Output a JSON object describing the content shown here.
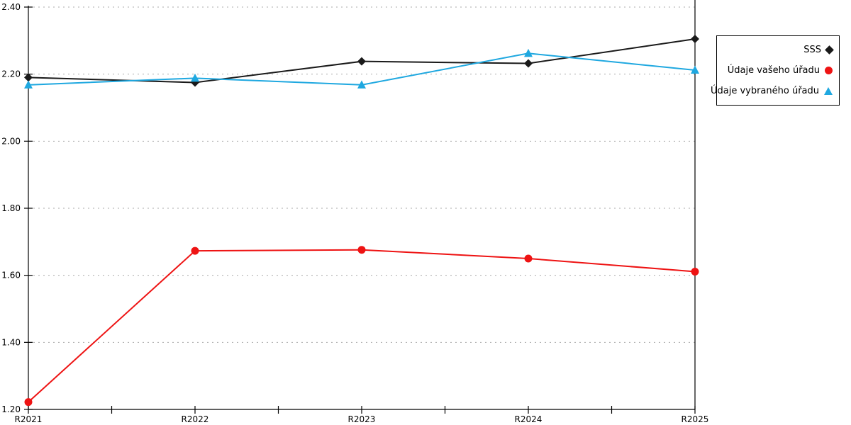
{
  "chart_data": {
    "type": "line",
    "title": "",
    "xlabel": "",
    "ylabel": "",
    "categories": [
      "R2021",
      "R2022",
      "R2023",
      "R2024",
      "R2025"
    ],
    "series": [
      {
        "name": "SSS",
        "marker": "diamond",
        "color": "#1a1a1a",
        "values": [
          2.19,
          2.175,
          2.238,
          2.232,
          2.305
        ]
      },
      {
        "name": "Údaje vašeho úřadu",
        "marker": "circle",
        "color": "#ee1313",
        "values": [
          1.222,
          1.673,
          1.676,
          1.65,
          1.611
        ]
      },
      {
        "name": "Údaje vybraného úřadu",
        "marker": "triangle",
        "color": "#1fa8e0",
        "values": [
          2.168,
          2.188,
          2.168,
          2.262,
          2.212
        ]
      }
    ],
    "ylim": [
      1.2,
      2.4
    ],
    "y_ticks": [
      2.4,
      2.2,
      2.0,
      1.8,
      1.6,
      1.4,
      1.2
    ],
    "y_tick_labels": [
      "2.40",
      "2.20",
      "2.00",
      "1.80",
      "1.60",
      "1.40",
      "1.20"
    ],
    "x_tick_labels": [
      "R2021",
      "R2022",
      "R2023",
      "R2024",
      "R2025"
    ],
    "grid": "horizontal-dashed",
    "gridline_color": "#aaaaaa",
    "axis_color": "#000000",
    "legend_position": "outside-right-top"
  }
}
